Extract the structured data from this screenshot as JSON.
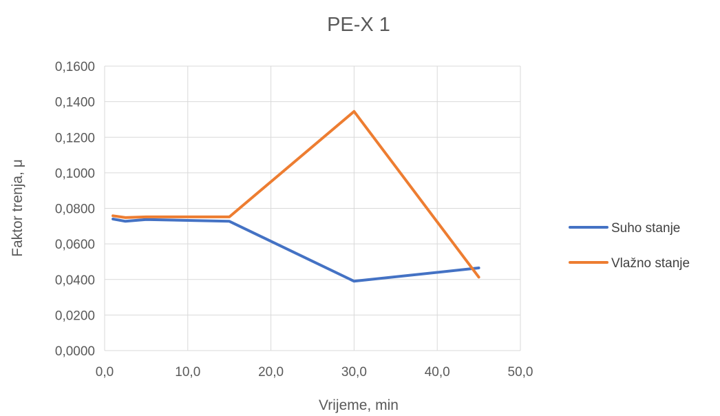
{
  "chart_data": {
    "type": "line",
    "title": "PE-X 1",
    "xlabel": "Vrijeme, min",
    "ylabel": "Faktor trenja, μ",
    "xlim": [
      0,
      50
    ],
    "ylim": [
      0,
      0.16
    ],
    "x_ticks": [
      "0,0",
      "10,0",
      "20,0",
      "30,0",
      "40,0",
      "50,0"
    ],
    "y_ticks": [
      "0,0000",
      "0,0200",
      "0,0400",
      "0,0600",
      "0,0800",
      "0,1000",
      "0,1200",
      "0,1400",
      "0,1600"
    ],
    "grid": true,
    "legend_position": "right",
    "series": [
      {
        "name": "Suho stanje",
        "color": "#4472C4",
        "x": [
          1,
          2.5,
          5,
          15,
          30,
          45
        ],
        "y": [
          0.074,
          0.0727,
          0.0737,
          0.0727,
          0.039,
          0.0465
        ]
      },
      {
        "name": "Vlažno stanje",
        "color": "#ED7D31",
        "x": [
          1,
          2.5,
          5,
          15,
          30,
          45
        ],
        "y": [
          0.0758,
          0.0748,
          0.0752,
          0.0752,
          0.1345,
          0.0413
        ]
      }
    ]
  }
}
